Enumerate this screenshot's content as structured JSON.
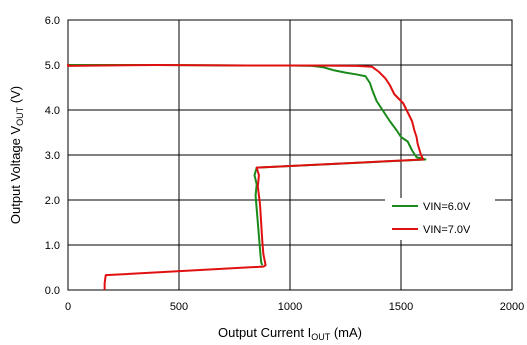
{
  "chart_data": {
    "type": "line",
    "xlabel": {
      "main": "Output Current I",
      "sub": "OUT",
      "unit": " (mA)"
    },
    "ylabel": {
      "main": "Output Voltage V",
      "sub": "OUT",
      "unit": " (V)"
    },
    "xlim": [
      0,
      2000
    ],
    "ylim": [
      0,
      6
    ],
    "x_ticks": [
      "0",
      "500",
      "1000",
      "1500",
      "2000"
    ],
    "y_ticks": [
      "0.0",
      "1.0",
      "2.0",
      "3.0",
      "4.0",
      "5.0",
      "6.0"
    ],
    "x_tick_values": [
      0,
      500,
      1000,
      1500,
      2000
    ],
    "y_tick_values": [
      0,
      1,
      2,
      3,
      4,
      5,
      6
    ],
    "grid": true,
    "legend_position": "lower-right",
    "series": [
      {
        "name": "VIN=6.0V",
        "color": "#1a8a1a",
        "points": [
          [
            0,
            5.0
          ],
          [
            400,
            5.0
          ],
          [
            800,
            4.99
          ],
          [
            1000,
            4.99
          ],
          [
            1100,
            4.98
          ],
          [
            1150,
            4.95
          ],
          [
            1200,
            4.88
          ],
          [
            1250,
            4.83
          ],
          [
            1300,
            4.79
          ],
          [
            1340,
            4.75
          ],
          [
            1360,
            4.6
          ],
          [
            1370,
            4.45
          ],
          [
            1390,
            4.2
          ],
          [
            1410,
            4.05
          ],
          [
            1430,
            3.9
          ],
          [
            1450,
            3.75
          ],
          [
            1480,
            3.55
          ],
          [
            1500,
            3.4
          ],
          [
            1530,
            3.3
          ],
          [
            1550,
            3.1
          ],
          [
            1570,
            2.95
          ],
          [
            1610,
            2.9
          ],
          [
            850,
            2.72
          ],
          [
            840,
            2.55
          ],
          [
            850,
            2.35
          ],
          [
            845,
            2.1
          ],
          [
            850,
            1.8
          ],
          [
            855,
            1.5
          ],
          [
            860,
            1.2
          ],
          [
            865,
            0.9
          ],
          [
            870,
            0.62
          ],
          [
            875,
            0.55
          ]
        ]
      },
      {
        "name": "VIN=7.0V",
        "color": "#e01010",
        "points": [
          [
            0,
            5.02
          ],
          [
            0,
            4.98
          ],
          [
            400,
            5.0
          ],
          [
            800,
            4.99
          ],
          [
            1100,
            4.99
          ],
          [
            1300,
            4.98
          ],
          [
            1370,
            4.96
          ],
          [
            1400,
            4.85
          ],
          [
            1430,
            4.7
          ],
          [
            1450,
            4.55
          ],
          [
            1470,
            4.35
          ],
          [
            1490,
            4.25
          ],
          [
            1510,
            4.15
          ],
          [
            1530,
            3.95
          ],
          [
            1550,
            3.75
          ],
          [
            1560,
            3.55
          ],
          [
            1570,
            3.4
          ],
          [
            1575,
            3.25
          ],
          [
            1590,
            3.0
          ],
          [
            1600,
            2.9
          ],
          [
            850,
            2.72
          ],
          [
            860,
            2.55
          ],
          [
            855,
            2.3
          ],
          [
            865,
            1.9
          ],
          [
            870,
            1.5
          ],
          [
            875,
            1.1
          ],
          [
            880,
            0.8
          ],
          [
            890,
            0.55
          ],
          [
            880,
            0.52
          ],
          [
            170,
            0.33
          ],
          [
            165,
            0.15
          ],
          [
            165,
            0.0
          ]
        ]
      }
    ]
  }
}
